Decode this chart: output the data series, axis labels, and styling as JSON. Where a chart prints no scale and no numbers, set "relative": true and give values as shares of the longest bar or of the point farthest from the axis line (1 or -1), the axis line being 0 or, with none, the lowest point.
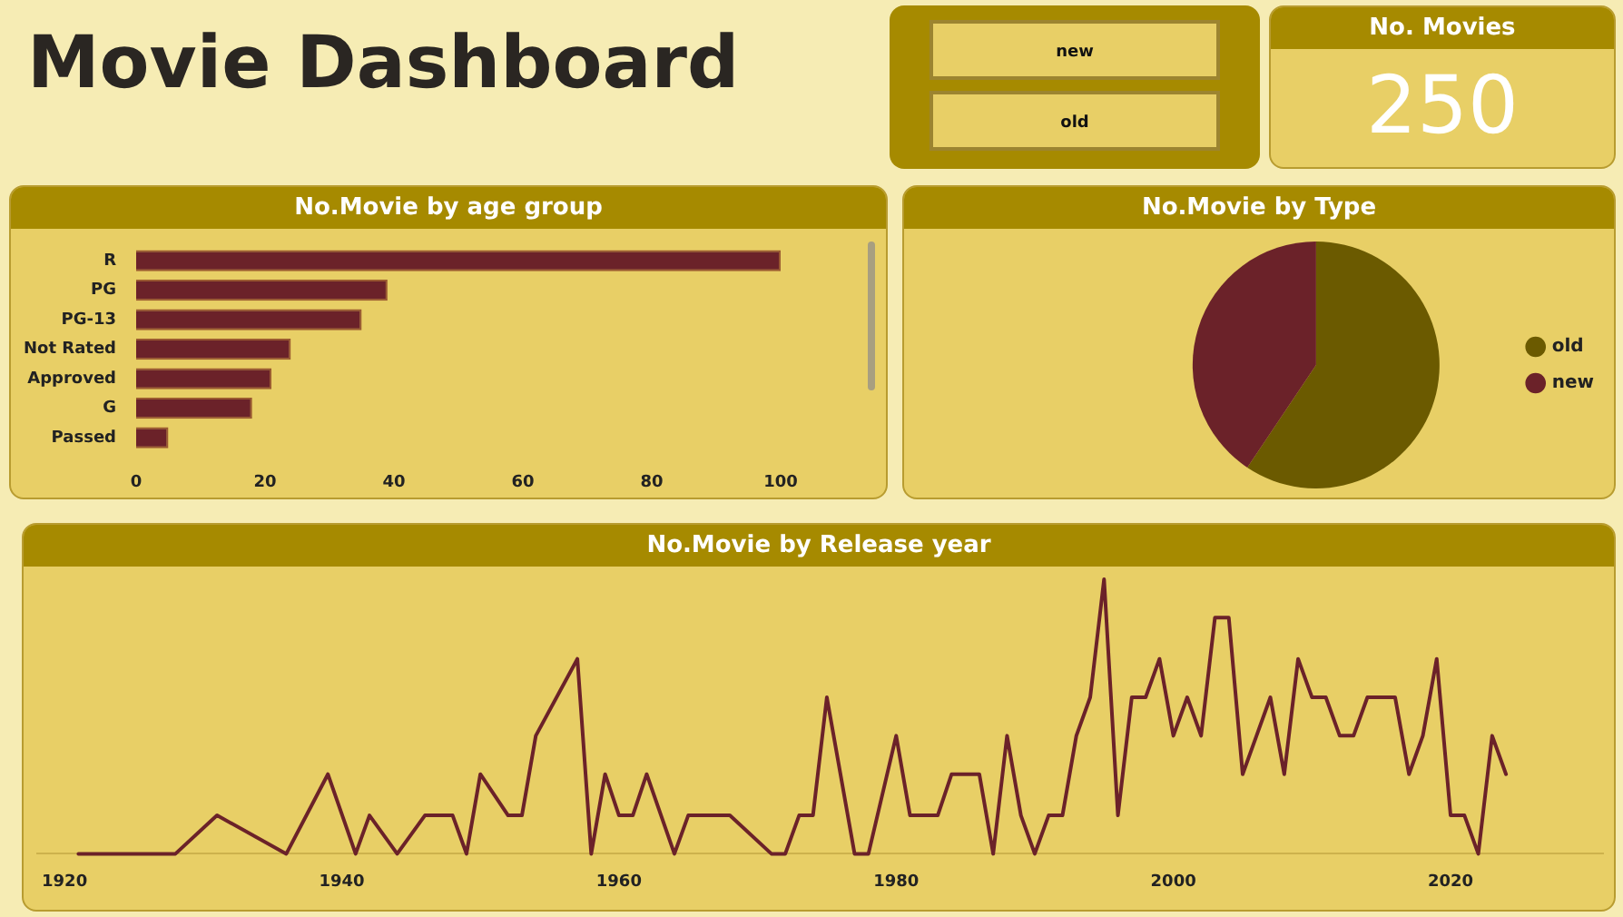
{
  "chart_data": [
    {
      "type": "other",
      "title": "Movie Dashboard"
    },
    {
      "type": "other",
      "categories": [
        "new",
        "old"
      ]
    },
    {
      "type": "other",
      "title": "No. Movies",
      "annotations": [
        "250"
      ]
    },
    {
      "type": "bar",
      "orientation": "horizontal",
      "title": "No.Movie by age group",
      "categories": [
        "R",
        "PG",
        "PG-13",
        "Not Rated",
        "Approved",
        "G",
        "Passed"
      ],
      "values": [
        100,
        39,
        35,
        24,
        21,
        18,
        5
      ],
      "color": "#6b2229",
      "xlim": [
        0,
        100
      ],
      "xticks": [
        0,
        20,
        40,
        60,
        80,
        100
      ]
    },
    {
      "type": "pie",
      "title": "No.Movie by Type",
      "categories": [
        "old",
        "new"
      ],
      "values": [
        59.4,
        40.6
      ],
      "colors": [
        "#6b5a00",
        "#6b2229"
      ],
      "legend": "right"
    },
    {
      "type": "line",
      "title": "No.Movie by Release year",
      "relative": true,
      "marker": "none",
      "color": "#6b2229",
      "xlim": [
        1918,
        2031
      ],
      "xticks": [
        1920,
        1940,
        1960,
        1980,
        2000,
        2020
      ],
      "x": [
        1921,
        1928,
        1931,
        1936,
        1939,
        1941,
        1942,
        1944,
        1946,
        1948,
        1949,
        1950,
        1952,
        1953,
        1954,
        1957,
        1958,
        1959,
        1960,
        1961,
        1962,
        1964,
        1965,
        1968,
        1971,
        1972,
        1973,
        1974,
        1975,
        1977,
        1978,
        1980,
        1981,
        1983,
        1984,
        1986,
        1987,
        1988,
        1989,
        1990,
        1991,
        1992,
        1993,
        1994,
        1995,
        1996,
        1997,
        1998,
        1999,
        2000,
        2001,
        2002,
        2003,
        2004,
        2005,
        2006,
        2007,
        2008,
        2009,
        2010,
        2011,
        2012,
        2013,
        2014,
        2016,
        2017,
        2018,
        2019,
        2020,
        2021,
        2022,
        2023,
        2024
      ],
      "values": [
        0,
        0,
        0.14,
        0,
        0.29,
        0,
        0.14,
        0,
        0.14,
        0.14,
        0,
        0.29,
        0.14,
        0.14,
        0.43,
        0.71,
        0,
        0.29,
        0.14,
        0.14,
        0.29,
        0,
        0.14,
        0.14,
        0,
        0,
        0.14,
        0.14,
        0.57,
        0,
        0,
        0.43,
        0.14,
        0.14,
        0.29,
        0.29,
        0,
        0.43,
        0.14,
        0,
        0.14,
        0.14,
        0.43,
        0.57,
        1,
        0.14,
        0.57,
        0.57,
        0.71,
        0.43,
        0.57,
        0.43,
        0.86,
        0.86,
        0.29,
        0.43,
        0.57,
        0.29,
        0.71,
        0.57,
        0.57,
        0.43,
        0.43,
        0.57,
        0.57,
        0.29,
        0.43,
        0.71,
        0.14,
        0.14,
        0,
        0.43,
        0.29
      ]
    }
  ]
}
